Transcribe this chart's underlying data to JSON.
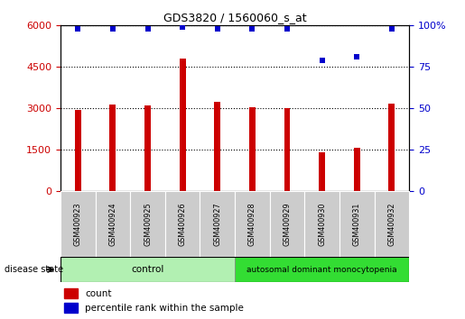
{
  "title": "GDS3820 / 1560060_s_at",
  "samples": [
    "GSM400923",
    "GSM400924",
    "GSM400925",
    "GSM400926",
    "GSM400927",
    "GSM400928",
    "GSM400929",
    "GSM400930",
    "GSM400931",
    "GSM400932"
  ],
  "counts": [
    2950,
    3150,
    3100,
    4800,
    3250,
    3050,
    3000,
    1400,
    1580,
    3180
  ],
  "percentiles": [
    98,
    98,
    98,
    99,
    98,
    98,
    98,
    79,
    81,
    98
  ],
  "bar_color": "#cc0000",
  "dot_color": "#0000cc",
  "ylim_left": [
    0,
    6000
  ],
  "ylim_right": [
    0,
    100
  ],
  "yticks_left": [
    0,
    1500,
    3000,
    4500,
    6000
  ],
  "yticks_right": [
    0,
    25,
    50,
    75,
    100
  ],
  "grid_values": [
    1500,
    3000,
    4500,
    6000
  ],
  "control_samples": 5,
  "control_label": "control",
  "disease_label": "autosomal dominant monocytopenia",
  "disease_state_label": "disease state",
  "legend_count": "count",
  "legend_percentile": "percentile rank within the sample",
  "control_color": "#b2f0b2",
  "disease_color": "#33dd33",
  "bar_width": 0.18,
  "figsize": [
    5.15,
    3.54
  ],
  "dpi": 100
}
